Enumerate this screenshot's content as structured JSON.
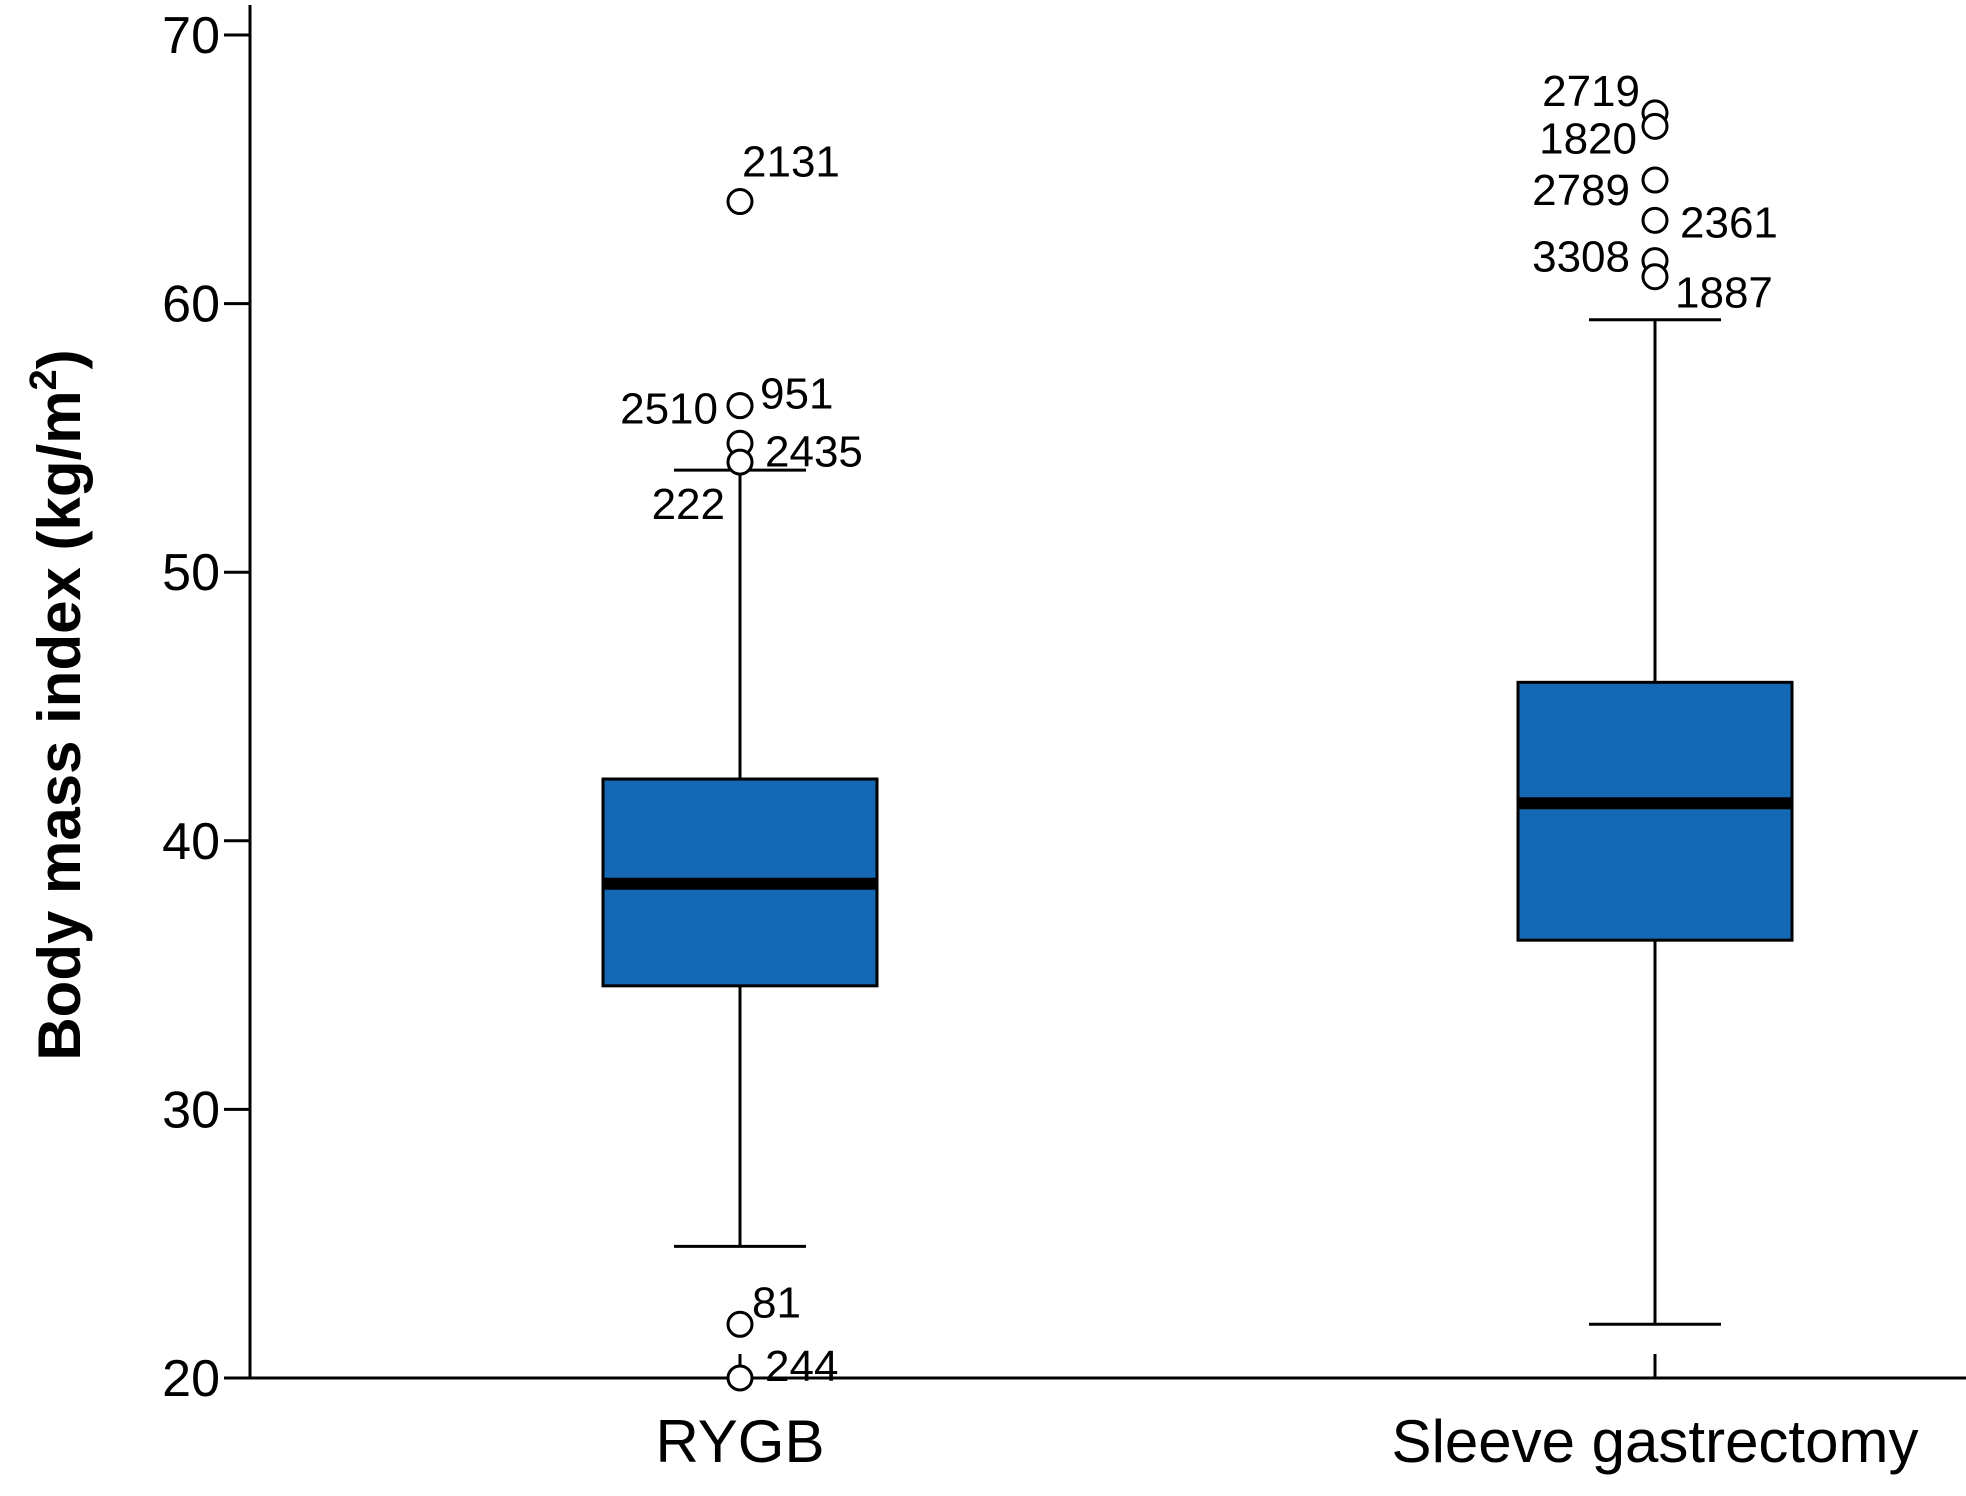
{
  "chart_data": {
    "type": "box",
    "ylabel": "Body mass index (kg/m",
    "ylabel_sup": "2",
    "ylabel_suffix": ")",
    "ylim": [
      20,
      71
    ],
    "yticks": [
      20,
      30,
      40,
      50,
      60,
      70
    ],
    "box_color": "#1568b3",
    "categories": [
      "RYGB",
      "Sleeve gastrectomy"
    ],
    "boxes": [
      {
        "category": "RYGB",
        "whisker_low": 24.9,
        "q1": 34.6,
        "median": 38.4,
        "q3": 42.3,
        "whisker_high": 53.8,
        "outliers": [
          {
            "label": "2131",
            "value": 63.8
          },
          {
            "label": "951",
            "value": 56.2
          },
          {
            "label": "2510",
            "value": 56.2
          },
          {
            "label": "2435",
            "value": 54.8
          },
          {
            "label": "222",
            "value": 54.1
          },
          {
            "label": "81",
            "value": 22.0
          },
          {
            "label": "244",
            "value": 20.0
          }
        ]
      },
      {
        "category": "Sleeve gastrectomy",
        "whisker_low": 22.0,
        "q1": 36.3,
        "median": 41.4,
        "q3": 45.9,
        "whisker_high": 59.4,
        "outliers": [
          {
            "label": "2719",
            "value": 67.1
          },
          {
            "label": "1820",
            "value": 66.6
          },
          {
            "label": "2789",
            "value": 64.6
          },
          {
            "label": "2361",
            "value": 63.1
          },
          {
            "label": "3308",
            "value": 61.6
          },
          {
            "label": "1887",
            "value": 61.0
          }
        ]
      }
    ]
  }
}
